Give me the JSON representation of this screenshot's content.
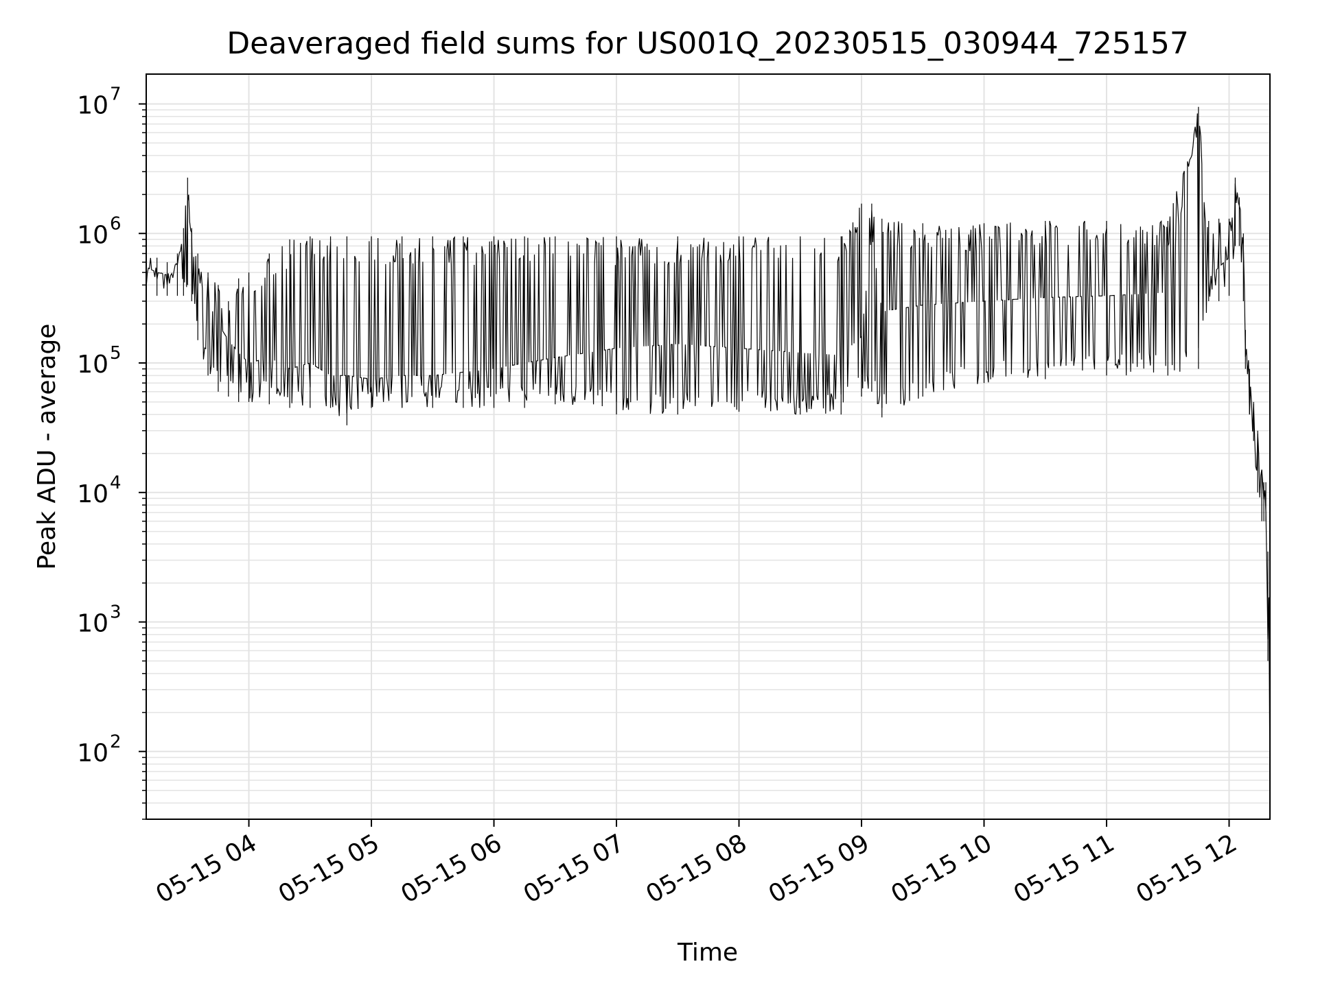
{
  "chart_data": {
    "type": "line",
    "title": "Deaveraged field sums for US001Q_20230515_030944_725157",
    "xlabel": "Time",
    "ylabel": "Peak ADU - average",
    "yscale": "log",
    "ylim": [
      30,
      17000000
    ],
    "xlim": [
      "2023-05-15 03:09:44",
      "2023-05-15 12:20:00"
    ],
    "grid": true,
    "line_color": "#000000",
    "grid_color": "#e3e3e3",
    "x_ticks": [
      {
        "value": "2023-05-15 04:00",
        "label": "05-15 04"
      },
      {
        "value": "2023-05-15 05:00",
        "label": "05-15 05"
      },
      {
        "value": "2023-05-15 06:00",
        "label": "05-15 06"
      },
      {
        "value": "2023-05-15 07:00",
        "label": "05-15 07"
      },
      {
        "value": "2023-05-15 08:00",
        "label": "05-15 08"
      },
      {
        "value": "2023-05-15 09:00",
        "label": "05-15 09"
      },
      {
        "value": "2023-05-15 10:00",
        "label": "05-15 10"
      },
      {
        "value": "2023-05-15 11:00",
        "label": "05-15 11"
      },
      {
        "value": "2023-05-15 12:00",
        "label": "05-15 12"
      }
    ],
    "y_ticks": [
      {
        "value": 100,
        "base": "10",
        "exp": "2"
      },
      {
        "value": 1000,
        "base": "10",
        "exp": "3"
      },
      {
        "value": 10000,
        "base": "10",
        "exp": "4"
      },
      {
        "value": 100000,
        "base": "10",
        "exp": "5"
      },
      {
        "value": 1000000,
        "base": "10",
        "exp": "6"
      },
      {
        "value": 10000000,
        "base": "10",
        "exp": "7"
      }
    ],
    "series": [
      {
        "x": [
          "2023-05-15 03:09:44",
          "2023-05-15 03:15",
          "2023-05-15 03:20",
          "2023-05-15 03:25",
          "2023-05-15 03:28",
          "2023-05-15 03:30",
          "2023-05-15 03:32",
          "2023-05-15 03:35",
          "2023-05-15 03:40",
          "2023-05-15 03:45",
          "2023-05-15 03:50",
          "2023-05-15 03:55",
          "2023-05-15 04:00",
          "2023-05-15 04:10",
          "2023-05-15 04:20",
          "2023-05-15 04:30",
          "2023-05-15 04:40",
          "2023-05-15 04:48",
          "2023-05-15 05:00",
          "2023-05-15 05:15",
          "2023-05-15 05:30",
          "2023-05-15 05:45",
          "2023-05-15 06:00",
          "2023-05-15 06:15",
          "2023-05-15 06:30",
          "2023-05-15 07:00",
          "2023-05-15 07:30",
          "2023-05-15 08:00",
          "2023-05-15 08:30",
          "2023-05-15 08:50",
          "2023-05-15 09:00",
          "2023-05-15 09:05",
          "2023-05-15 09:10",
          "2023-05-15 09:30",
          "2023-05-15 10:00",
          "2023-05-15 10:30",
          "2023-05-15 11:00",
          "2023-05-15 11:30",
          "2023-05-15 11:45",
          "2023-05-15 11:50",
          "2023-05-15 11:55",
          "2023-05-15 12:00",
          "2023-05-15 12:03",
          "2023-05-15 12:05",
          "2023-05-15 12:07",
          "2023-05-15 12:08",
          "2023-05-15 12:10",
          "2023-05-15 12:12",
          "2023-05-15 12:14",
          "2023-05-15 12:16",
          "2023-05-15 12:17",
          "2023-05-15 12:18",
          "2023-05-15 12:19",
          "2023-05-15 12:20"
        ],
        "y": [
          550000,
          500000,
          480000,
          600000,
          1000000,
          2700000,
          800000,
          450000,
          300000,
          200000,
          150000,
          120000,
          100000,
          110000,
          90000,
          100000,
          80000,
          80000,
          75000,
          80000,
          80000,
          85000,
          90000,
          100000,
          110000,
          130000,
          140000,
          130000,
          120000,
          115000,
          160000,
          1000000,
          250000,
          280000,
          300000,
          320000,
          330000,
          350000,
          9500000,
          450000,
          550000,
          650000,
          2700000,
          1500000,
          800000,
          150000,
          80000,
          30000,
          20000,
          15000,
          9000,
          7000,
          700,
          50
        ],
        "low": [
          330000,
          330000,
          330000,
          330000,
          330000,
          400000,
          300000,
          150000,
          80000,
          60000,
          55000,
          50000,
          50000,
          48000,
          45000,
          45000,
          45000,
          33000,
          45000,
          45000,
          45000,
          45000,
          45000,
          45000,
          48000,
          40000,
          40000,
          42000,
          40000,
          40000,
          55000,
          60000,
          38000,
          55000,
          70000,
          75000,
          80000,
          80000,
          90000,
          300000,
          300000,
          330000,
          800000,
          800000,
          300000,
          90000,
          40000,
          25000,
          10000,
          6000,
          6000,
          6000,
          500,
          50
        ],
        "high": [
          700000,
          650000,
          600000,
          700000,
          1100000,
          2700000,
          1100000,
          700000,
          500000,
          400000,
          300000,
          450000,
          500000,
          700000,
          900000,
          950000,
          950000,
          950000,
          950000,
          950000,
          950000,
          950000,
          950000,
          950000,
          950000,
          950000,
          950000,
          950000,
          950000,
          950000,
          1700000,
          1700000,
          1300000,
          1200000,
          1200000,
          1250000,
          1250000,
          1250000,
          9500000,
          1250000,
          1300000,
          1300000,
          2700000,
          1900000,
          1000000,
          180000,
          90000,
          50000,
          30000,
          15000,
          12000,
          12000,
          3500,
          700
        ]
      }
    ]
  }
}
